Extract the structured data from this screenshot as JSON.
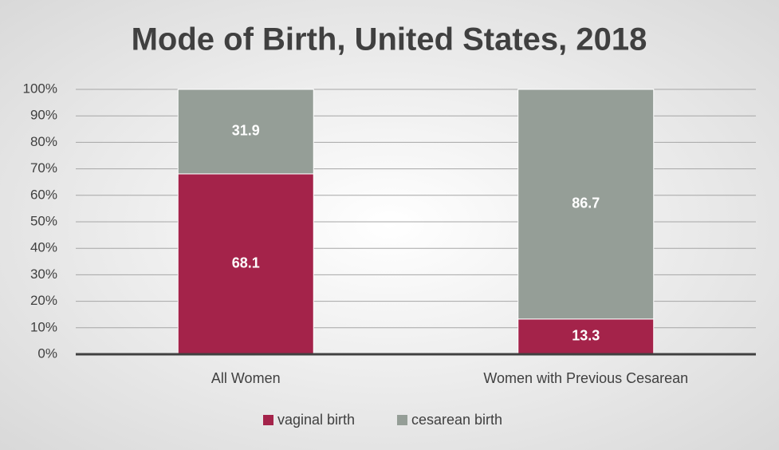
{
  "chart_data": {
    "type": "stacked_bar",
    "title": "Mode of Birth, United States, 2018",
    "categories": [
      "All Women",
      "Women with Previous Cesarean"
    ],
    "series": [
      {
        "name": "vaginal birth",
        "color": "#a4234a",
        "values": [
          68.1,
          13.3
        ]
      },
      {
        "name": "cesarean birth",
        "color": "#959e97",
        "values": [
          31.9,
          86.7
        ]
      }
    ],
    "ylim": [
      0,
      100
    ],
    "yticks": [
      {
        "value": 0,
        "label": "0%"
      },
      {
        "value": 10,
        "label": "10%"
      },
      {
        "value": 20,
        "label": "20%"
      },
      {
        "value": 30,
        "label": "30%"
      },
      {
        "value": 40,
        "label": "40%"
      },
      {
        "value": 50,
        "label": "50%"
      },
      {
        "value": 60,
        "label": "60%"
      },
      {
        "value": 70,
        "label": "70%"
      },
      {
        "value": 80,
        "label": "80%"
      },
      {
        "value": 90,
        "label": "90%"
      },
      {
        "value": 100,
        "label": "100%"
      }
    ],
    "grid": true,
    "legend": "bottom"
  }
}
